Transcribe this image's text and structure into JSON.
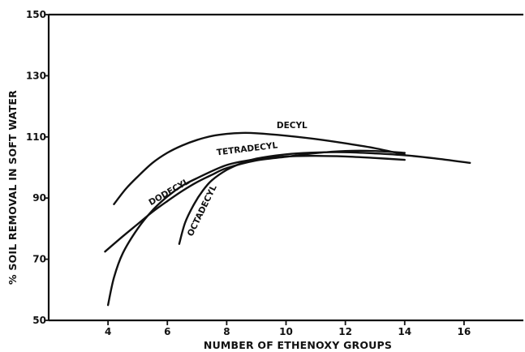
{
  "chart_data": {
    "type": "line",
    "title": "",
    "xlabel": "NUMBER OF ETHENOXY GROUPS",
    "ylabel": "% SOIL REMOVAL IN SOFT WATER",
    "xlim": [
      2,
      18
    ],
    "ylim": [
      50,
      150
    ],
    "x_ticks": [
      4,
      6,
      8,
      10,
      12,
      14,
      16
    ],
    "y_ticks": [
      50,
      70,
      90,
      110,
      130,
      150
    ],
    "grid": false,
    "series": [
      {
        "name": "DECYL",
        "x": [
          4.2,
          4.6,
          5,
          5.5,
          6,
          6.5,
          7,
          7.5,
          8,
          8.5,
          9,
          10,
          11,
          12,
          13,
          14
        ],
        "y": [
          88,
          93,
          97,
          101.5,
          104.8,
          107.2,
          109,
          110.3,
          111,
          111.3,
          111.2,
          110.4,
          109.3,
          107.9,
          106.3,
          104.2
        ]
      },
      {
        "name": "TETRADECYL",
        "x": [
          4,
          4.2,
          4.5,
          5,
          5.5,
          6,
          6.5,
          7,
          8,
          9,
          10,
          11,
          12,
          13,
          14
        ],
        "y": [
          55,
          64,
          72,
          80,
          86,
          90.5,
          94,
          96.5,
          100.8,
          102.7,
          103.6,
          103.8,
          103.6,
          103.1,
          102.5
        ]
      },
      {
        "name": "DODECYL",
        "x": [
          3.9,
          4.5,
          5,
          5.5,
          6,
          6.5,
          7,
          7.5,
          8,
          9,
          10,
          11,
          12,
          13,
          14
        ],
        "y": [
          72.5,
          77.5,
          81.5,
          85.5,
          89,
          92.3,
          95.2,
          97.6,
          99.8,
          102.3,
          103.5,
          104.7,
          105.4,
          105.4,
          104.8
        ]
      },
      {
        "name": "OCTADECYL",
        "x": [
          6.4,
          6.6,
          6.9,
          7.2,
          7.5,
          8,
          8.5,
          9,
          10,
          11,
          12,
          13,
          14,
          15,
          16.2
        ],
        "y": [
          75,
          82,
          88,
          92.5,
          95.8,
          99.2,
          101.4,
          102.9,
          104.3,
          104.9,
          105,
          104.6,
          104,
          103,
          101.5
        ]
      }
    ],
    "curve_labels": [
      {
        "text": "DECYL"
      },
      {
        "text": "TETRADECYL"
      },
      {
        "text": "DODECYL"
      },
      {
        "text": "OCTADECYL"
      }
    ]
  }
}
